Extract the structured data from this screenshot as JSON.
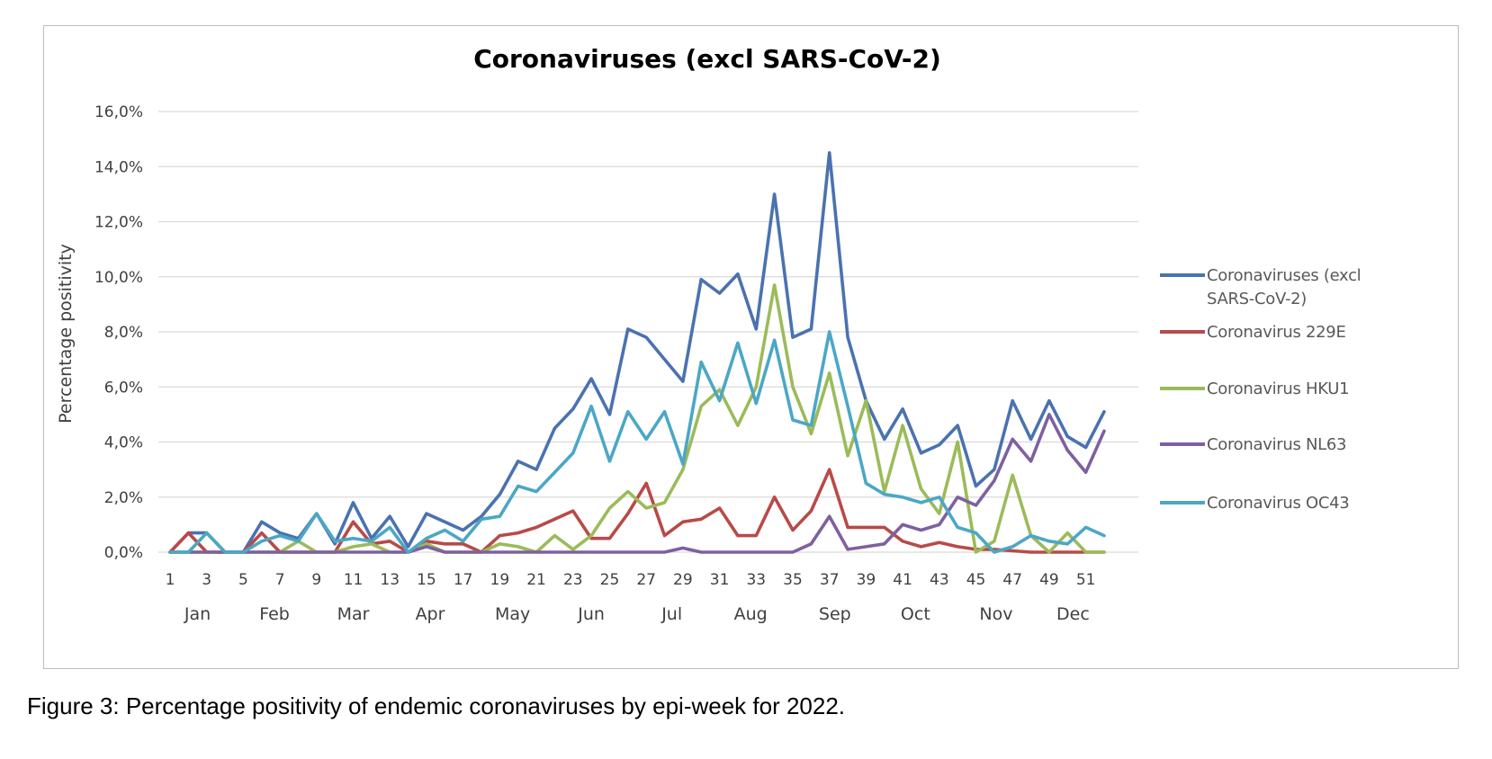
{
  "caption": "Figure 3: Percentage positivity of endemic coronaviruses by epi-week for 2022.",
  "chart_data": {
    "type": "line",
    "title": "Coronaviruses (excl SARS-CoV-2)",
    "xlabel": "",
    "ylabel": "Percentage positivity",
    "ylim": [
      0,
      16
    ],
    "yticks": [
      "0,0%",
      "2,0%",
      "4,0%",
      "6,0%",
      "8,0%",
      "10,0%",
      "12,0%",
      "14,0%",
      "16,0%"
    ],
    "xtick_labels": [
      "1",
      "3",
      "5",
      "7",
      "9",
      "11",
      "13",
      "15",
      "17",
      "19",
      "21",
      "23",
      "25",
      "27",
      "29",
      "31",
      "33",
      "35",
      "37",
      "39",
      "41",
      "43",
      "45",
      "47",
      "49",
      "51"
    ],
    "months": [
      {
        "label": "Jan",
        "week": 2.5
      },
      {
        "label": "Feb",
        "week": 6.7
      },
      {
        "label": "Mar",
        "week": 11
      },
      {
        "label": "Apr",
        "week": 15.2
      },
      {
        "label": "May",
        "week": 19.7
      },
      {
        "label": "Jun",
        "week": 24
      },
      {
        "label": "Jul",
        "week": 28.4
      },
      {
        "label": "Aug",
        "week": 32.7
      },
      {
        "label": "Sep",
        "week": 37.3
      },
      {
        "label": "Oct",
        "week": 41.7
      },
      {
        "label": "Nov",
        "week": 46.1
      },
      {
        "label": "Dec",
        "week": 50.3
      }
    ],
    "x": [
      1,
      2,
      3,
      4,
      5,
      6,
      7,
      8,
      9,
      10,
      11,
      12,
      13,
      14,
      15,
      16,
      17,
      18,
      19,
      20,
      21,
      22,
      23,
      24,
      25,
      26,
      27,
      28,
      29,
      30,
      31,
      32,
      33,
      34,
      35,
      36,
      37,
      38,
      39,
      40,
      41,
      42,
      43,
      44,
      45,
      46,
      47,
      48,
      49,
      50,
      51,
      52
    ],
    "grid": true,
    "legend_position": "right",
    "series": [
      {
        "name": "Coronaviruses (excl SARS-CoV-2)",
        "color": "#4a72b0",
        "values": [
          0,
          0.7,
          0.7,
          0,
          0,
          1.1,
          0.7,
          0.5,
          1.4,
          0.3,
          1.8,
          0.5,
          1.3,
          0.2,
          1.4,
          1.1,
          0.8,
          1.3,
          2.1,
          3.3,
          3.0,
          4.5,
          5.2,
          6.3,
          5.0,
          8.1,
          7.8,
          7.0,
          6.2,
          9.9,
          9.4,
          10.1,
          8.1,
          13.0,
          7.8,
          8.1,
          14.5,
          7.8,
          5.5,
          4.1,
          5.2,
          3.6,
          3.9,
          4.6,
          2.4,
          3.0,
          5.5,
          4.1,
          5.5,
          4.2,
          3.8,
          5.1
        ]
      },
      {
        "name": "Coronavirus 229E",
        "color": "#b84a48",
        "values": [
          0,
          0.7,
          0,
          0,
          0,
          0.7,
          0,
          0,
          0,
          0,
          1.1,
          0.3,
          0.4,
          0,
          0.4,
          0.3,
          0.3,
          0,
          0.6,
          0.7,
          0.9,
          1.2,
          1.5,
          0.5,
          0.5,
          1.4,
          2.5,
          0.6,
          1.1,
          1.2,
          1.6,
          0.6,
          0.6,
          2.0,
          0.8,
          1.5,
          3.0,
          0.9,
          0.9,
          0.9,
          0.4,
          0.2,
          0.35,
          0.2,
          0.1,
          0.1,
          0.05,
          0,
          0,
          0,
          0,
          0
        ]
      },
      {
        "name": "Coronavirus HKU1",
        "color": "#9bbb59",
        "values": [
          0,
          0,
          0,
          0,
          0,
          0,
          0,
          0.4,
          0,
          0,
          0.2,
          0.3,
          0,
          0,
          0.3,
          0,
          0,
          0,
          0.3,
          0.2,
          0,
          0.6,
          0.1,
          0.6,
          1.6,
          2.2,
          1.6,
          1.8,
          3.0,
          5.3,
          5.9,
          4.6,
          6.0,
          9.7,
          6.0,
          4.3,
          6.5,
          3.5,
          5.5,
          2.2,
          4.6,
          2.3,
          1.4,
          4.0,
          0,
          0.4,
          2.8,
          0.6,
          0,
          0.7,
          0,
          0
        ]
      },
      {
        "name": "Coronavirus NL63",
        "color": "#7e60a0",
        "values": [
          0,
          0,
          0,
          0,
          0,
          0,
          0,
          0,
          0,
          0,
          0,
          0,
          0,
          0,
          0.2,
          0,
          0,
          0,
          0,
          0,
          0,
          0,
          0,
          0,
          0,
          0,
          0,
          0,
          0.15,
          0,
          0,
          0,
          0,
          0,
          0,
          0.3,
          1.3,
          0.1,
          0.2,
          0.3,
          1.0,
          0.8,
          1.0,
          2.0,
          1.7,
          2.6,
          4.1,
          3.3,
          5.0,
          3.7,
          2.9,
          4.4
        ]
      },
      {
        "name": "Coronavirus OC43",
        "color": "#4ba7c5",
        "values": [
          0,
          0,
          0.7,
          0,
          0,
          0.4,
          0.6,
          0.4,
          1.4,
          0.4,
          0.5,
          0.4,
          0.9,
          0,
          0.5,
          0.8,
          0.4,
          1.2,
          1.3,
          2.4,
          2.2,
          2.9,
          3.6,
          5.3,
          3.3,
          5.1,
          4.1,
          5.1,
          3.2,
          6.9,
          5.5,
          7.6,
          5.4,
          7.7,
          4.8,
          4.6,
          8.0,
          5.3,
          2.5,
          2.1,
          2.0,
          1.8,
          2.0,
          0.9,
          0.7,
          0,
          0.2,
          0.6,
          0.4,
          0.3,
          0.9,
          0.6
        ]
      }
    ]
  }
}
